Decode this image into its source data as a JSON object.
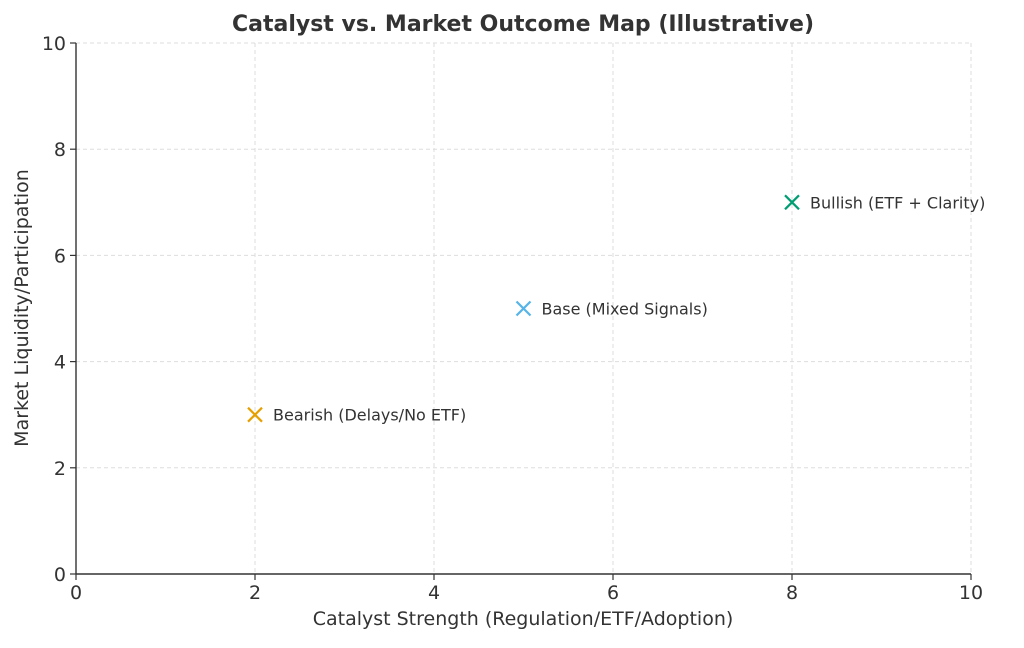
{
  "chart_data": {
    "type": "scatter",
    "title": "Catalyst vs. Market Outcome Map (Illustrative)",
    "xlabel": "Catalyst Strength (Regulation/ETF/Adoption)",
    "ylabel": "Market Liquidity/Participation",
    "xlim": [
      0,
      10
    ],
    "ylim": [
      0,
      10
    ],
    "xticks": [
      0,
      2,
      4,
      6,
      8,
      10
    ],
    "yticks": [
      0,
      2,
      4,
      6,
      8,
      10
    ],
    "grid": true,
    "marker": "x",
    "points": [
      {
        "label": "Bearish (Delays/No ETF)",
        "x": 2,
        "y": 3,
        "color": "#E69F00"
      },
      {
        "label": "Base (Mixed Signals)",
        "x": 5,
        "y": 5,
        "color": "#56B4E9"
      },
      {
        "label": "Bullish (ETF + Clarity)",
        "x": 8,
        "y": 7,
        "color": "#009E73"
      }
    ]
  }
}
